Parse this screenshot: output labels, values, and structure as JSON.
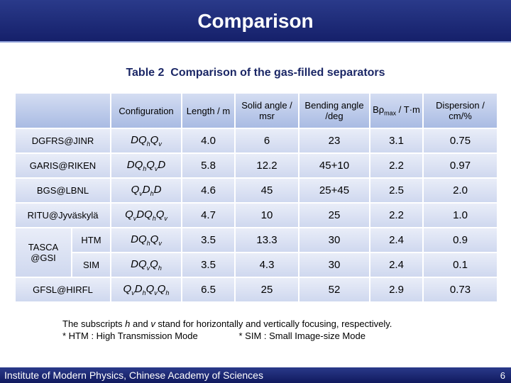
{
  "header": {
    "title": "Comparison"
  },
  "caption": "Table 2  Comparison of the gas-filled separators",
  "table": {
    "columns": [
      [
        {
          "t": "Configuration"
        }
      ],
      [
        {
          "t": "Length / m"
        }
      ],
      [
        {
          "t": "Solid angle / msr"
        }
      ],
      [
        {
          "t": "Bending angle /deg"
        }
      ],
      [
        {
          "t": "Bρ"
        },
        {
          "sub": "max"
        },
        {
          "t": " / T·m"
        }
      ],
      [
        {
          "t": "Dispersion / cm/%"
        }
      ]
    ],
    "rows": [
      {
        "name": "DGFRS@JINR",
        "config": [
          {
            "t": "DQ"
          },
          {
            "sub": "h"
          },
          {
            "t": "Q"
          },
          {
            "sub": "v"
          }
        ],
        "cells": [
          "4.0",
          "6",
          "23",
          "3.1",
          "0.75"
        ]
      },
      {
        "name": "GARIS@RIKEN",
        "config": [
          {
            "t": "DQ"
          },
          {
            "sub": "h"
          },
          {
            "t": "Q"
          },
          {
            "sub": "v"
          },
          {
            "t": "D"
          }
        ],
        "cells": [
          "5.8",
          "12.2",
          "45+10",
          "2.2",
          "0.97"
        ]
      },
      {
        "name": "BGS@LBNL",
        "config": [
          {
            "t": "Q"
          },
          {
            "sub": "v"
          },
          {
            "t": "D"
          },
          {
            "sub": "h"
          },
          {
            "t": "D"
          }
        ],
        "cells": [
          "4.6",
          "45",
          "25+45",
          "2.5",
          "2.0"
        ]
      },
      {
        "name": "RITU@Jyväskylä",
        "config": [
          {
            "t": "Q"
          },
          {
            "sub": "v"
          },
          {
            "t": "DQ"
          },
          {
            "sub": "h"
          },
          {
            "t": "Q"
          },
          {
            "sub": "v"
          }
        ],
        "cells": [
          "4.7",
          "10",
          "25",
          "2.2",
          "1.0"
        ]
      },
      {
        "group": "TASCA @GSI",
        "mode": "HTM",
        "config": [
          {
            "t": "DQ"
          },
          {
            "sub": "h"
          },
          {
            "t": "Q"
          },
          {
            "sub": "v"
          }
        ],
        "cells": [
          "3.5",
          "13.3",
          "30",
          "2.4",
          "0.9"
        ]
      },
      {
        "mode": "SIM",
        "config": [
          {
            "t": "DQ"
          },
          {
            "sub": "v"
          },
          {
            "t": "Q"
          },
          {
            "sub": "h"
          }
        ],
        "cells": [
          "3.5",
          "4.3",
          "30",
          "2.4",
          "0.1"
        ]
      },
      {
        "name": "GFSL@HIRFL",
        "config": [
          {
            "t": "Q"
          },
          {
            "sub": "v"
          },
          {
            "t": "D"
          },
          {
            "sub": "h"
          },
          {
            "t": "Q"
          },
          {
            "sub": "v"
          },
          {
            "t": "Q"
          },
          {
            "sub": "h"
          }
        ],
        "cells": [
          "6.5",
          "25",
          "52",
          "2.9",
          "0.73"
        ]
      }
    ]
  },
  "notes": [
    [
      {
        "t": "The subscripts "
      },
      {
        "i": "h"
      },
      {
        "t": " and "
      },
      {
        "i": "v"
      },
      {
        "t": " stand for horizontally and vertically focusing, respectively."
      }
    ],
    [
      {
        "t": "* HTM : High Transmission Mode                * SIM : Small Image-size Mode"
      }
    ]
  ],
  "footer": {
    "institute": "Institute of Modern Physics, Chinese Academy of Sciences",
    "page": "6"
  }
}
